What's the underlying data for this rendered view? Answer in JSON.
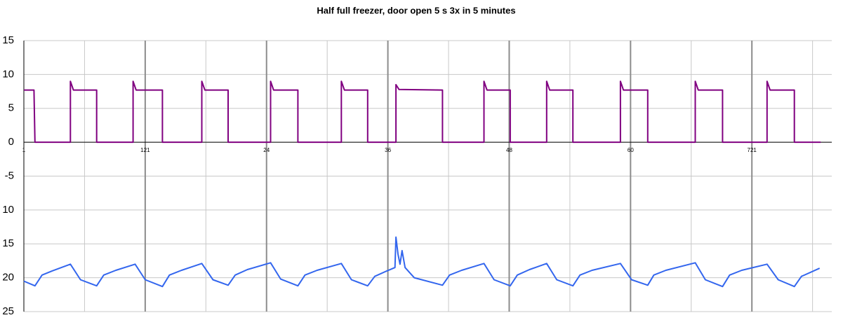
{
  "chart_data": {
    "type": "line",
    "title": "Half full freezer, door open 5 s 3x in 5 minutes",
    "xlim": [
      1,
      800
    ],
    "xticks": [
      1,
      121,
      {
        "value": 241,
        "label": "24"
      },
      {
        "value": 361,
        "label": "36"
      },
      {
        "value": 481,
        "label": "48"
      },
      {
        "value": 601,
        "label": "60"
      },
      721
    ],
    "ylim": [
      -25,
      15
    ],
    "yticks": [
      15,
      10,
      5,
      0,
      -5,
      {
        "value": -10,
        "label": "10"
      },
      {
        "value": -15,
        "label": "15"
      },
      {
        "value": -20,
        "label": "20"
      },
      {
        "value": -25,
        "label": "25"
      }
    ],
    "grid": true,
    "series": [
      {
        "color": "#800080",
        "x": [
          1,
          11,
          12,
          47,
          47,
          50,
          73,
          73,
          109,
          109,
          112,
          138,
          138,
          177,
          177,
          180,
          203,
          203,
          245,
          245,
          248,
          272,
          272,
          315,
          315,
          318,
          341,
          341,
          369,
          369,
          372,
          415,
          415,
          456,
          456,
          459,
          482,
          482,
          518,
          518,
          521,
          544,
          544,
          591,
          591,
          594,
          618,
          618,
          665,
          665,
          668,
          692,
          692,
          736,
          736,
          739,
          763,
          763,
          789
        ],
        "values": [
          7.7,
          7.7,
          0,
          0,
          9,
          7.7,
          7.7,
          0,
          0,
          9,
          7.7,
          7.7,
          0,
          0,
          9,
          7.7,
          7.7,
          0,
          0,
          9,
          7.7,
          7.7,
          0,
          0,
          9,
          7.7,
          7.7,
          0,
          0,
          8.5,
          7.8,
          7.7,
          0,
          0,
          9,
          7.7,
          7.7,
          0,
          0,
          9,
          7.7,
          7.7,
          0,
          0,
          9,
          7.7,
          7.7,
          0,
          0,
          9,
          7.7,
          7.7,
          0,
          0,
          9,
          7.7,
          7.7,
          0,
          0
        ]
      },
      {
        "color": "#3366ee",
        "x": [
          1,
          12,
          19,
          29,
          47,
          57,
          73,
          80,
          92,
          111,
          121,
          138,
          145,
          157,
          177,
          188,
          203,
          210,
          222,
          245,
          255,
          272,
          279,
          291,
          315,
          325,
          341,
          348,
          360,
          368,
          369,
          371,
          373,
          375,
          378,
          387,
          415,
          422,
          434,
          456,
          466,
          482,
          489,
          501,
          518,
          528,
          544,
          551,
          563,
          591,
          602,
          618,
          624,
          636,
          665,
          675,
          692,
          699,
          711,
          736,
          747,
          763,
          770,
          788
        ],
        "values": [
          -20.5,
          -21.2,
          -19.6,
          -19,
          -18,
          -20.3,
          -21.2,
          -19.6,
          -18.9,
          -18,
          -20.3,
          -21.3,
          -19.6,
          -18.9,
          -17.9,
          -20.3,
          -21.1,
          -19.6,
          -18.8,
          -17.8,
          -20.2,
          -21.2,
          -19.6,
          -18.9,
          -17.9,
          -20.3,
          -21.2,
          -19.8,
          -19,
          -18.5,
          -14,
          -16.5,
          -18,
          -16,
          -18.5,
          -20,
          -21.1,
          -19.6,
          -18.9,
          -17.9,
          -20.3,
          -21.2,
          -19.6,
          -18.8,
          -17.9,
          -20.3,
          -21.2,
          -19.6,
          -18.9,
          -17.9,
          -20.3,
          -21.1,
          -19.6,
          -18.9,
          -17.8,
          -20.3,
          -21.3,
          -19.6,
          -18.9,
          -18,
          -20.3,
          -21.3,
          -19.8,
          -18.6
        ]
      }
    ]
  }
}
